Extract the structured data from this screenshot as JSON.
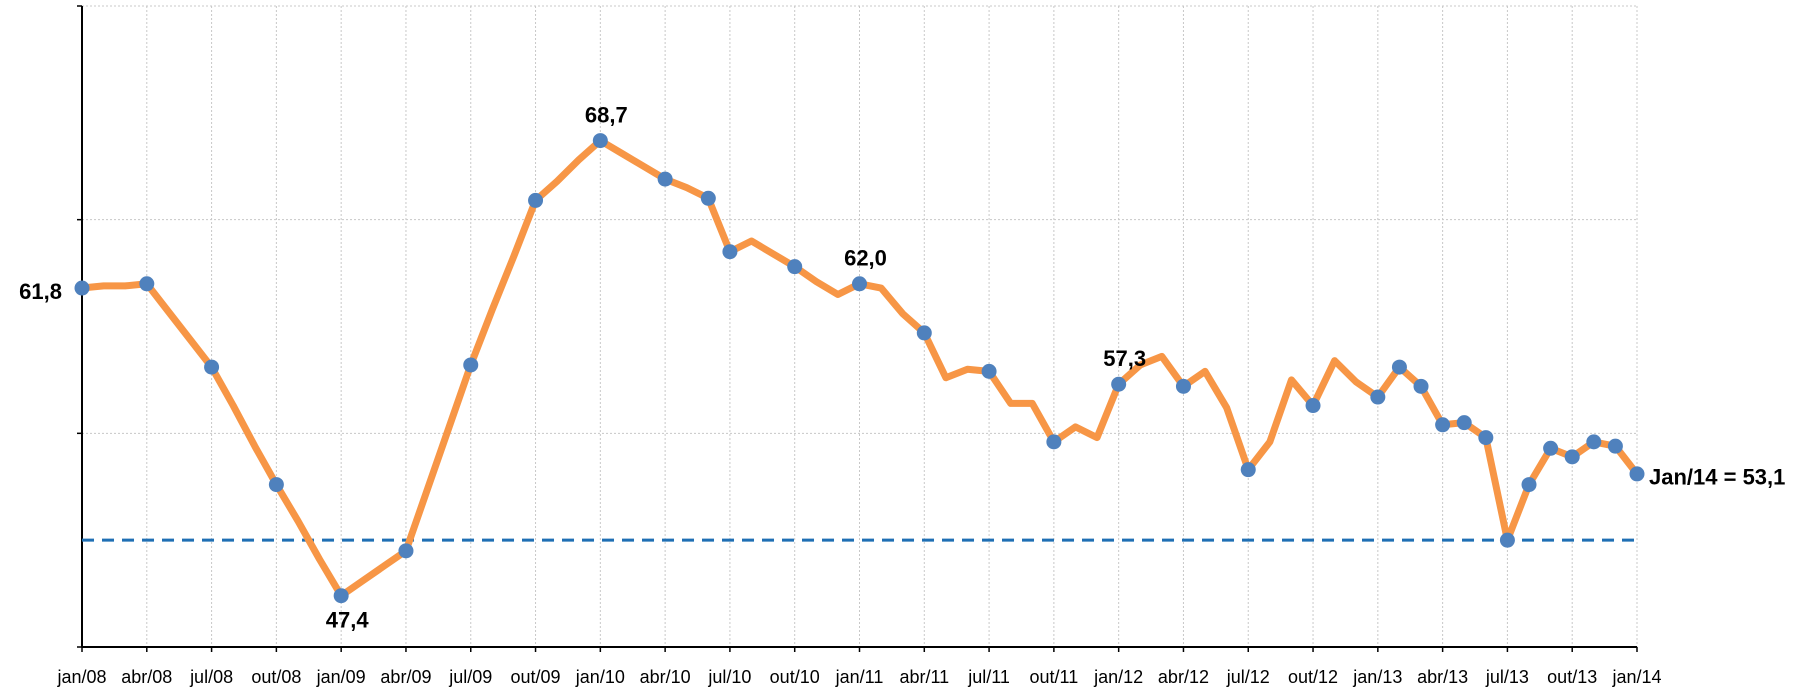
{
  "chart_data": {
    "type": "line",
    "categories": [
      "jan/08",
      null,
      null,
      "abr/08",
      null,
      null,
      "jul/08",
      null,
      null,
      "out/08",
      null,
      null,
      "jan/09",
      null,
      null,
      "abr/09",
      null,
      null,
      "jul/09",
      null,
      null,
      "out/09",
      null,
      null,
      "jan/10",
      null,
      null,
      "abr/10",
      null,
      null,
      "jul/10",
      null,
      null,
      "out/10",
      null,
      null,
      "jan/11",
      null,
      null,
      "abr/11",
      null,
      null,
      "jul/11",
      null,
      null,
      "out/11",
      null,
      null,
      "jan/12",
      null,
      null,
      "abr/12",
      null,
      null,
      "jul/12",
      null,
      null,
      "out/12",
      null,
      null,
      "jan/13",
      null,
      null,
      "abr/13",
      null,
      null,
      "jul/13",
      null,
      null,
      "out/13",
      null,
      null,
      "jan/14"
    ],
    "series": [
      {
        "color": "#f79646",
        "marker_color": "#4f81bd",
        "values": [
          61.8,
          61.9,
          61.9,
          62.0,
          60.7,
          59.4,
          58.1,
          56.3,
          54.4,
          52.6,
          50.9,
          49.1,
          47.4,
          48.1,
          48.8,
          49.5,
          52.4,
          55.3,
          58.2,
          60.8,
          63.3,
          65.9,
          66.8,
          67.8,
          68.7,
          68.1,
          67.5,
          66.9,
          66.5,
          66.0,
          63.5,
          64.0,
          63.4,
          62.8,
          62.1,
          61.5,
          62.0,
          61.8,
          60.6,
          59.7,
          57.6,
          58.0,
          57.9,
          56.4,
          56.4,
          54.6,
          55.3,
          54.8,
          57.3,
          58.2,
          58.6,
          57.2,
          57.9,
          56.2,
          53.3,
          54.6,
          57.5,
          56.3,
          58.4,
          57.4,
          56.7,
          58.1,
          57.2,
          55.4,
          55.5,
          54.8,
          50.0,
          52.6,
          54.3,
          53.9,
          54.6,
          54.4,
          53.1
        ],
        "markers": [
          true,
          false,
          false,
          true,
          false,
          false,
          true,
          false,
          false,
          true,
          false,
          false,
          true,
          false,
          false,
          true,
          false,
          false,
          true,
          false,
          false,
          true,
          false,
          false,
          true,
          false,
          false,
          true,
          false,
          true,
          true,
          false,
          false,
          true,
          false,
          false,
          true,
          false,
          false,
          true,
          false,
          false,
          true,
          false,
          false,
          true,
          false,
          false,
          true,
          false,
          false,
          true,
          false,
          false,
          true,
          false,
          false,
          true,
          false,
          false,
          true,
          true,
          true,
          true,
          true,
          true,
          true,
          true,
          true,
          true,
          true,
          true,
          true
        ],
        "value_labels": [
          "61,8",
          null,
          null,
          null,
          null,
          null,
          null,
          null,
          null,
          null,
          null,
          null,
          "47,4",
          null,
          null,
          null,
          null,
          null,
          null,
          null,
          null,
          null,
          null,
          null,
          "68,7",
          null,
          null,
          null,
          null,
          null,
          null,
          null,
          null,
          null,
          null,
          null,
          "62,0",
          null,
          null,
          null,
          null,
          null,
          null,
          null,
          null,
          null,
          null,
          null,
          "57,3",
          null,
          null,
          null,
          null,
          null,
          null,
          null,
          null,
          null,
          null,
          null,
          null,
          null,
          null,
          null,
          null,
          null,
          null,
          null,
          null,
          null,
          null,
          null,
          "Jan/14 = 53,1"
        ]
      }
    ],
    "ylim": [
      45,
      75
    ],
    "yticks": [
      45,
      55,
      65,
      75
    ],
    "grid": true,
    "reference_line": {
      "value": 50,
      "color": "#1f6fb4"
    }
  }
}
